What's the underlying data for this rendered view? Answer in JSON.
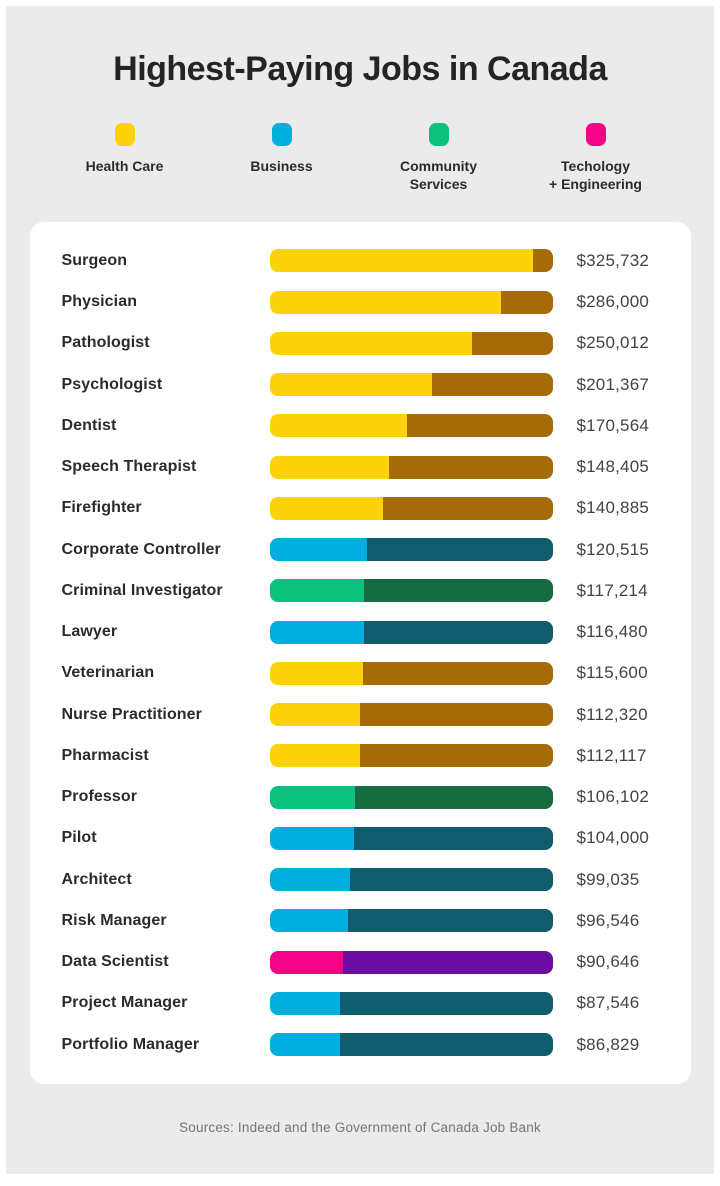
{
  "title": "Highest-Paying Jobs in Canada",
  "footer": "Sources: Indeed and the Government of Canada Job Bank",
  "chart_data": {
    "type": "bar",
    "orientation": "horizontal",
    "title": "Highest-Paying Jobs in Canada",
    "axis_max": 350000,
    "value_prefix": "$",
    "legend_position": "top",
    "grid": false,
    "categories_legend": [
      {
        "id": "health",
        "label": "Health Care",
        "light": "#fcd20b",
        "dark": "#a66b09"
      },
      {
        "id": "business",
        "label": "Business",
        "light": "#00afde",
        "dark": "#0f5c6d"
      },
      {
        "id": "community",
        "label": "Community\nServices",
        "light": "#0bc17d",
        "dark": "#166b41"
      },
      {
        "id": "tech",
        "label": "Techology\n+ Engineering",
        "light": "#f30486",
        "dark": "#6a0ca0"
      }
    ],
    "rows": [
      {
        "label": "Surgeon",
        "value": 325732,
        "value_label": "$325,732",
        "category": "health"
      },
      {
        "label": "Physician",
        "value": 286000,
        "value_label": "$286,000",
        "category": "health"
      },
      {
        "label": "Pathologist",
        "value": 250012,
        "value_label": "$250,012",
        "category": "health"
      },
      {
        "label": "Psychologist",
        "value": 201367,
        "value_label": "$201,367",
        "category": "health"
      },
      {
        "label": "Dentist",
        "value": 170564,
        "value_label": "$170,564",
        "category": "health"
      },
      {
        "label": "Speech Therapist",
        "value": 148405,
        "value_label": "$148,405",
        "category": "health"
      },
      {
        "label": "Firefighter",
        "value": 140885,
        "value_label": "$140,885",
        "category": "health"
      },
      {
        "label": "Corporate Controller",
        "value": 120515,
        "value_label": "$120,515",
        "category": "business"
      },
      {
        "label": "Criminal Investigator",
        "value": 117214,
        "value_label": "$117,214",
        "category": "community"
      },
      {
        "label": "Lawyer",
        "value": 116480,
        "value_label": "$116,480",
        "category": "business"
      },
      {
        "label": "Veterinarian",
        "value": 115600,
        "value_label": "$115,600",
        "category": "health"
      },
      {
        "label": "Nurse Practitioner",
        "value": 112320,
        "value_label": "$112,320",
        "category": "health"
      },
      {
        "label": "Pharmacist",
        "value": 112117,
        "value_label": "$112,117",
        "category": "health"
      },
      {
        "label": "Professor",
        "value": 106102,
        "value_label": "$106,102",
        "category": "community"
      },
      {
        "label": "Pilot",
        "value": 104000,
        "value_label": "$104,000",
        "category": "business"
      },
      {
        "label": "Architect",
        "value": 99035,
        "value_label": "$99,035",
        "category": "business"
      },
      {
        "label": "Risk Manager",
        "value": 96546,
        "value_label": "$96,546",
        "category": "business"
      },
      {
        "label": "Data Scientist",
        "value": 90646,
        "value_label": "$90,646",
        "category": "tech"
      },
      {
        "label": "Project Manager",
        "value": 87546,
        "value_label": "$87,546",
        "category": "business"
      },
      {
        "label": "Portfolio Manager",
        "value": 86829,
        "value_label": "$86,829",
        "category": "business"
      }
    ]
  },
  "styles": {
    "background": "#ebebeb",
    "card": "#ffffff",
    "title_color": "#262324",
    "label_color": "#2d2a2b",
    "value_color": "#454243",
    "footer_color": "#757575"
  }
}
